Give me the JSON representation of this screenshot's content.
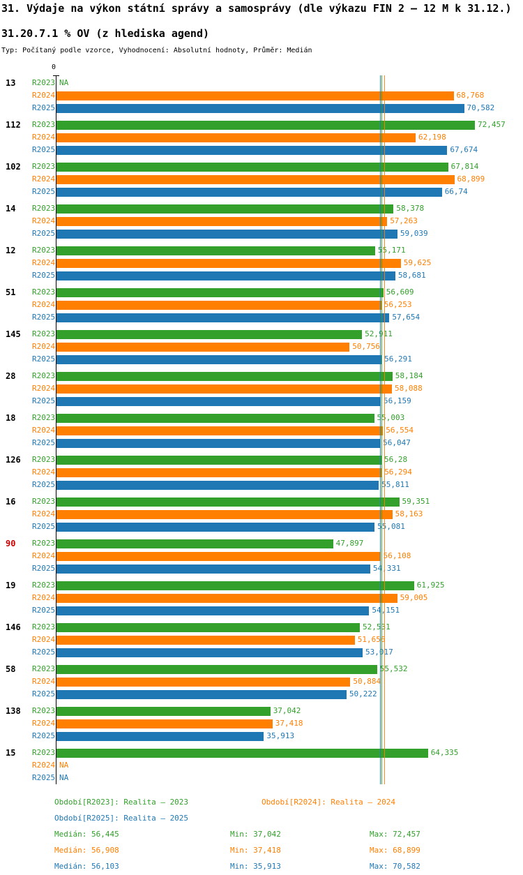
{
  "header": {
    "title": "31. Výdaje na výkon státní správy a samosprávy (dle výkazu FIN 2 – 12 M k 31.12.)",
    "subtitle": "31.20.7.1 % OV (z hlediska agend)",
    "meta": "Typ: Počítaný podle vzorce, Vyhodnocení: Absolutní hodnoty, Průměr: Medián"
  },
  "chart_data": {
    "type": "bar",
    "orientation": "horizontal",
    "axis_zero_label": "0",
    "xlim": [
      0,
      72.457
    ],
    "grid": false,
    "series_names": [
      "R2023",
      "R2024",
      "R2025"
    ],
    "colors": {
      "R2023": "#33a02c",
      "R2024": "#ff7f00",
      "R2025": "#1f78b4"
    },
    "group_label_default_color": "#000000",
    "groups": [
      {
        "label": "13",
        "values": [
          null,
          68.768,
          70.582
        ],
        "display": [
          "NA",
          "68,768",
          "70,582"
        ]
      },
      {
        "label": "112",
        "values": [
          72.457,
          62.198,
          67.674
        ],
        "display": [
          "72,457",
          "62,198",
          "67,674"
        ]
      },
      {
        "label": "102",
        "values": [
          67.814,
          68.899,
          66.74
        ],
        "display": [
          "67,814",
          "68,899",
          "66,74"
        ]
      },
      {
        "label": "14",
        "values": [
          58.378,
          57.263,
          59.039
        ],
        "display": [
          "58,378",
          "57,263",
          "59,039"
        ]
      },
      {
        "label": "12",
        "values": [
          55.171,
          59.625,
          58.681
        ],
        "display": [
          "55,171",
          "59,625",
          "58,681"
        ]
      },
      {
        "label": "51",
        "values": [
          56.609,
          56.253,
          57.654
        ],
        "display": [
          "56,609",
          "56,253",
          "57,654"
        ]
      },
      {
        "label": "145",
        "values": [
          52.911,
          50.756,
          56.291
        ],
        "display": [
          "52,911",
          "50,756",
          "56,291"
        ]
      },
      {
        "label": "28",
        "values": [
          58.184,
          58.088,
          56.159
        ],
        "display": [
          "58,184",
          "58,088",
          "56,159"
        ]
      },
      {
        "label": "18",
        "values": [
          55.003,
          56.554,
          56.047
        ],
        "display": [
          "55,003",
          "56,554",
          "56,047"
        ]
      },
      {
        "label": "126",
        "values": [
          56.28,
          56.294,
          55.811
        ],
        "display": [
          "56,28",
          "56,294",
          "55,811"
        ]
      },
      {
        "label": "16",
        "values": [
          59.351,
          58.163,
          55.081
        ],
        "display": [
          "59,351",
          "58,163",
          "55,081"
        ]
      },
      {
        "label": "90",
        "label_color": "#cc0000",
        "values": [
          47.897,
          56.108,
          54.331
        ],
        "display": [
          "47,897",
          "56,108",
          "54,331"
        ]
      },
      {
        "label": "19",
        "values": [
          61.925,
          59.005,
          54.151
        ],
        "display": [
          "61,925",
          "59,005",
          "54,151"
        ]
      },
      {
        "label": "146",
        "values": [
          52.531,
          51.656,
          53.017
        ],
        "display": [
          "52,531",
          "51,656",
          "53,017"
        ]
      },
      {
        "label": "58",
        "values": [
          55.532,
          50.884,
          50.222
        ],
        "display": [
          "55,532",
          "50,884",
          "50,222"
        ]
      },
      {
        "label": "138",
        "values": [
          37.042,
          37.418,
          35.913
        ],
        "display": [
          "37,042",
          "37,418",
          "35,913"
        ]
      },
      {
        "label": "15",
        "values": [
          64.335,
          null,
          null
        ],
        "display": [
          "64,335",
          "NA",
          "NA"
        ]
      }
    ],
    "medians": {
      "R2023": 56.445,
      "R2024": 56.908,
      "R2025": 56.103
    }
  },
  "legend": {
    "periods": [
      {
        "label": "Období[R2023]: Realita – 2023"
      },
      {
        "label": "Období[R2024]: Realita – 2024"
      },
      {
        "label": "Období[R2025]: Realita – 2025"
      }
    ],
    "stats": [
      {
        "median": "Medián: 56,445",
        "min": "Min: 37,042",
        "max": "Max: 72,457"
      },
      {
        "median": "Medián: 56,908",
        "min": "Min: 37,418",
        "max": "Max: 68,899"
      },
      {
        "median": "Medián: 56,103",
        "min": "Min: 35,913",
        "max": "Max: 70,582"
      }
    ]
  }
}
